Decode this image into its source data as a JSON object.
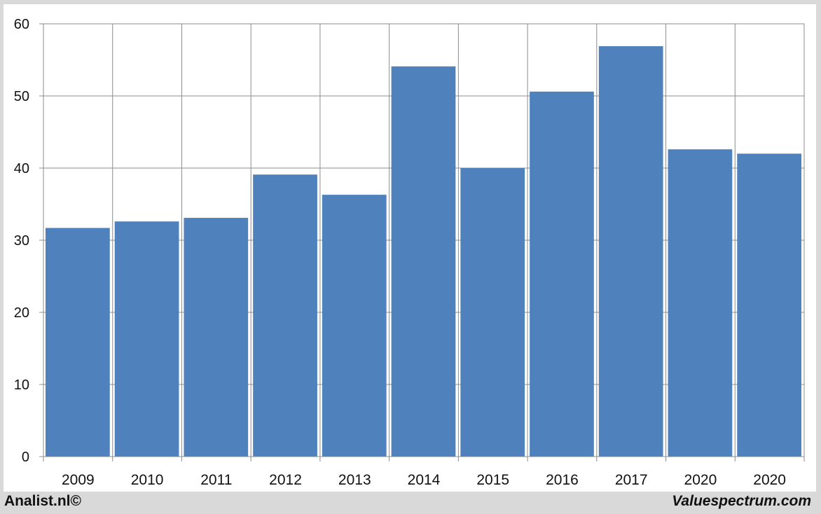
{
  "chart_data": {
    "type": "bar",
    "title": "",
    "xlabel": "",
    "ylabel": "",
    "categories": [
      "2009",
      "2010",
      "2011",
      "2012",
      "2013",
      "2014",
      "2015",
      "2016",
      "2017",
      "2020",
      "2020"
    ],
    "values": [
      31.7,
      32.6,
      33.1,
      39.1,
      36.3,
      54.1,
      40.0,
      50.6,
      56.9,
      42.6,
      42.0
    ],
    "ylim": [
      0,
      60
    ],
    "yticks": [
      0,
      10,
      20,
      30,
      40,
      50,
      60
    ],
    "grid": true,
    "legend": "none",
    "bar_color": "#4f81bd"
  },
  "footer": {
    "left_label": "Analist.nl©",
    "right_label": "Valuespectrum.com"
  }
}
